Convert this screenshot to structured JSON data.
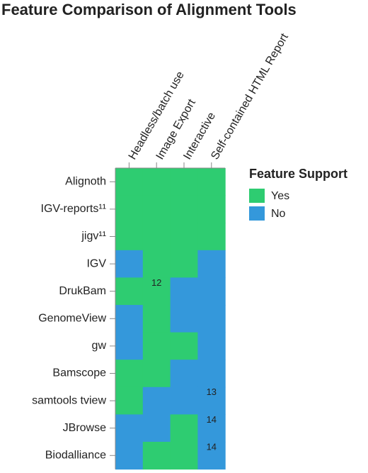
{
  "chart_data": {
    "type": "heatmap",
    "title": "Feature Comparison of Alignment Tools",
    "rows": [
      "Alignoth",
      "IGV-reports¹¹",
      "jigv¹¹",
      "IGV",
      "DrukBam",
      "GenomeView",
      "gw",
      "Bamscope",
      "samtools tview",
      "JBrowse",
      "Biodalliance"
    ],
    "columns": [
      "Headless/batch use",
      "Image Export",
      "Interactive",
      "Self-contained HTML Report"
    ],
    "values": [
      [
        "Yes",
        "Yes",
        "Yes",
        "Yes"
      ],
      [
        "Yes",
        "Yes",
        "Yes",
        "Yes"
      ],
      [
        "Yes",
        "Yes",
        "Yes",
        "Yes"
      ],
      [
        "No",
        "Yes",
        "Yes",
        "No"
      ],
      [
        "Yes",
        "Yes",
        "No",
        "No"
      ],
      [
        "No",
        "Yes",
        "No",
        "No"
      ],
      [
        "No",
        "Yes",
        "Yes",
        "No"
      ],
      [
        "Yes",
        "Yes",
        "No",
        "No"
      ],
      [
        "Yes",
        "No",
        "No",
        "No"
      ],
      [
        "No",
        "No",
        "Yes",
        "No"
      ],
      [
        "No",
        "Yes",
        "Yes",
        "No"
      ]
    ],
    "cell_labels": [
      [
        null,
        null,
        null,
        null
      ],
      [
        null,
        null,
        null,
        null
      ],
      [
        null,
        null,
        null,
        null
      ],
      [
        null,
        null,
        null,
        null
      ],
      [
        null,
        "12",
        null,
        null
      ],
      [
        null,
        null,
        null,
        null
      ],
      [
        null,
        null,
        null,
        null
      ],
      [
        null,
        null,
        null,
        null
      ],
      [
        null,
        null,
        null,
        "13"
      ],
      [
        null,
        null,
        null,
        "14"
      ],
      [
        null,
        null,
        null,
        "14"
      ]
    ],
    "legend_title": "Feature Support",
    "legend": [
      {
        "name": "Yes",
        "color": "#2ecc71"
      },
      {
        "name": "No",
        "color": "#3498db"
      }
    ]
  }
}
